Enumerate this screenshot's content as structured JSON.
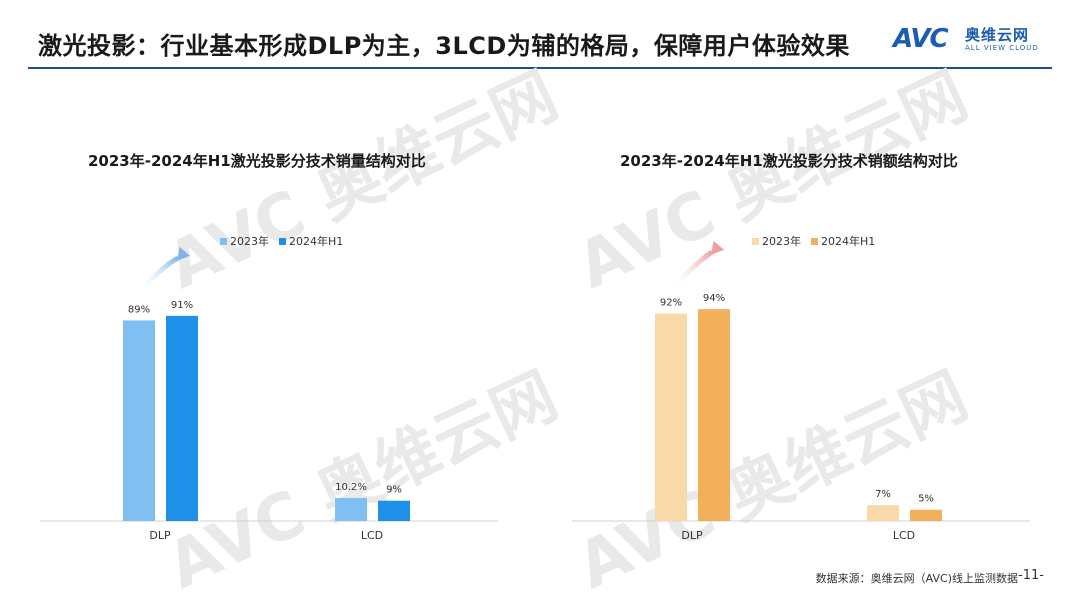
{
  "header": {
    "title": "激光投影：行业基本形成DLP为主，3LCD为辅的格局，保障用户体验效果"
  },
  "logo": {
    "mark": "AVC",
    "cn": "奥维云网",
    "en": "ALL VIEW CLOUD"
  },
  "footer": {
    "source": "数据来源：奥维云网（AVC)线上监测数据",
    "page": "-11-"
  },
  "colors": {
    "blue_2023": "#7fbff2",
    "blue_2024": "#1e90e8",
    "orange_2023": "#fad9a8",
    "orange_2024": "#f2b05a",
    "title_line": "#1f4e8c"
  },
  "chart_data": [
    {
      "type": "bar",
      "title": "2023年-2024年H1激光投影分技术销量结构对比",
      "categories": [
        "DLP",
        "LCD"
      ],
      "series": [
        {
          "name": "2023年",
          "values": [
            89,
            10.2
          ],
          "labels": [
            "89%",
            "10.2%"
          ]
        },
        {
          "name": "2024年H1",
          "values": [
            91,
            9
          ],
          "labels": [
            "91%",
            "9%"
          ]
        }
      ],
      "ylim": [
        0,
        100
      ],
      "legend": "top",
      "grid": false
    },
    {
      "type": "bar",
      "title": "2023年-2024年H1激光投影分技术销额结构对比",
      "categories": [
        "DLP",
        "LCD"
      ],
      "series": [
        {
          "name": "2023年",
          "values": [
            92,
            7
          ],
          "labels": [
            "92%",
            "7%"
          ]
        },
        {
          "name": "2024年H1",
          "values": [
            94,
            5
          ],
          "labels": [
            "94%",
            "5%"
          ]
        }
      ],
      "ylim": [
        0,
        100
      ],
      "legend": "top",
      "grid": false
    }
  ]
}
